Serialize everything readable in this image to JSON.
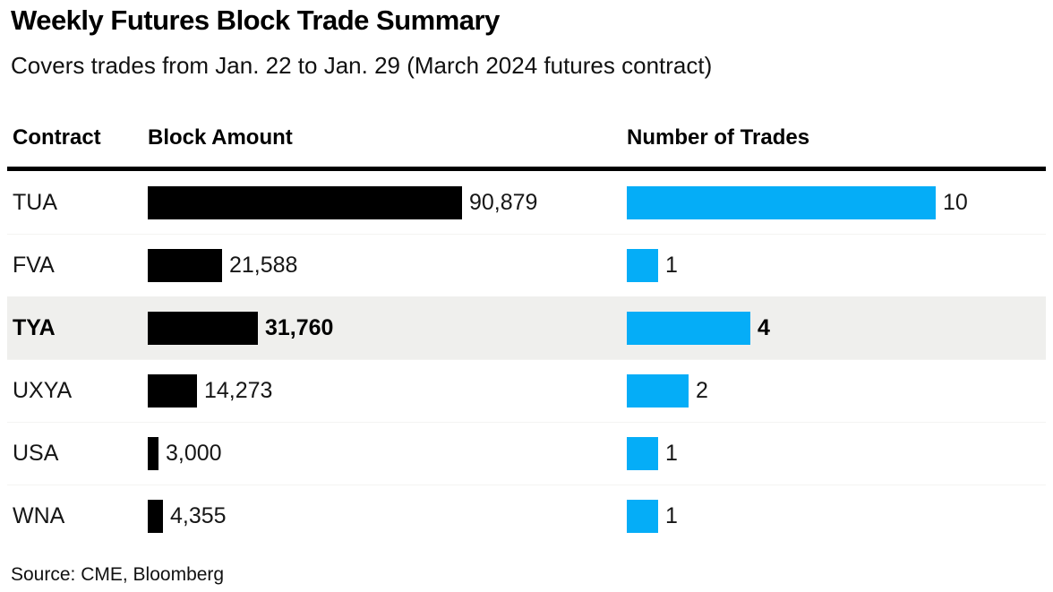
{
  "title": "Weekly Futures Block Trade Summary",
  "subtitle": "Covers trades from Jan. 22 to Jan. 29 (March 2024 futures contract)",
  "source": "Source: CME, Bloomberg",
  "columns": {
    "contract": "Contract",
    "block_amount": "Block Amount",
    "trades": "Number of Trades"
  },
  "colors": {
    "block_bar": "#000000",
    "trades_bar": "#05ADF7",
    "highlight_row": "#EFEFED",
    "header_rule": "#000000"
  },
  "rows": [
    {
      "contract": "TUA",
      "block_amount": 90879,
      "block_amount_label": "90,879",
      "trades": 10,
      "trades_label": "10",
      "highlighted": false
    },
    {
      "contract": "FVA",
      "block_amount": 21588,
      "block_amount_label": "21,588",
      "trades": 1,
      "trades_label": "1",
      "highlighted": false
    },
    {
      "contract": "TYA",
      "block_amount": 31760,
      "block_amount_label": "31,760",
      "trades": 4,
      "trades_label": "4",
      "highlighted": true
    },
    {
      "contract": "UXYA",
      "block_amount": 14273,
      "block_amount_label": "14,273",
      "trades": 2,
      "trades_label": "2",
      "highlighted": false
    },
    {
      "contract": "USA",
      "block_amount": 3000,
      "block_amount_label": "3,000",
      "trades": 1,
      "trades_label": "1",
      "highlighted": false
    },
    {
      "contract": "WNA",
      "block_amount": 4355,
      "block_amount_label": "4,355",
      "trades": 1,
      "trades_label": "1",
      "highlighted": false
    }
  ],
  "chart_data": {
    "type": "bar",
    "orientation": "horizontal",
    "title": "Weekly Futures Block Trade Summary",
    "subtitle": "Covers trades from Jan. 22 to Jan. 29 (March 2024 futures contract)",
    "categories": [
      "TUA",
      "FVA",
      "TYA",
      "UXYA",
      "USA",
      "WNA"
    ],
    "series": [
      {
        "name": "Block Amount",
        "values": [
          90879,
          21588,
          31760,
          14273,
          3000,
          4355
        ],
        "color": "#000000"
      },
      {
        "name": "Number of Trades",
        "values": [
          10,
          1,
          4,
          2,
          1,
          1
        ],
        "color": "#05ADF7"
      }
    ],
    "highlighted_category": "TYA",
    "data_labels": true,
    "grid": false,
    "legend_position": "column-headers",
    "source": "Source: CME, Bloomberg"
  }
}
